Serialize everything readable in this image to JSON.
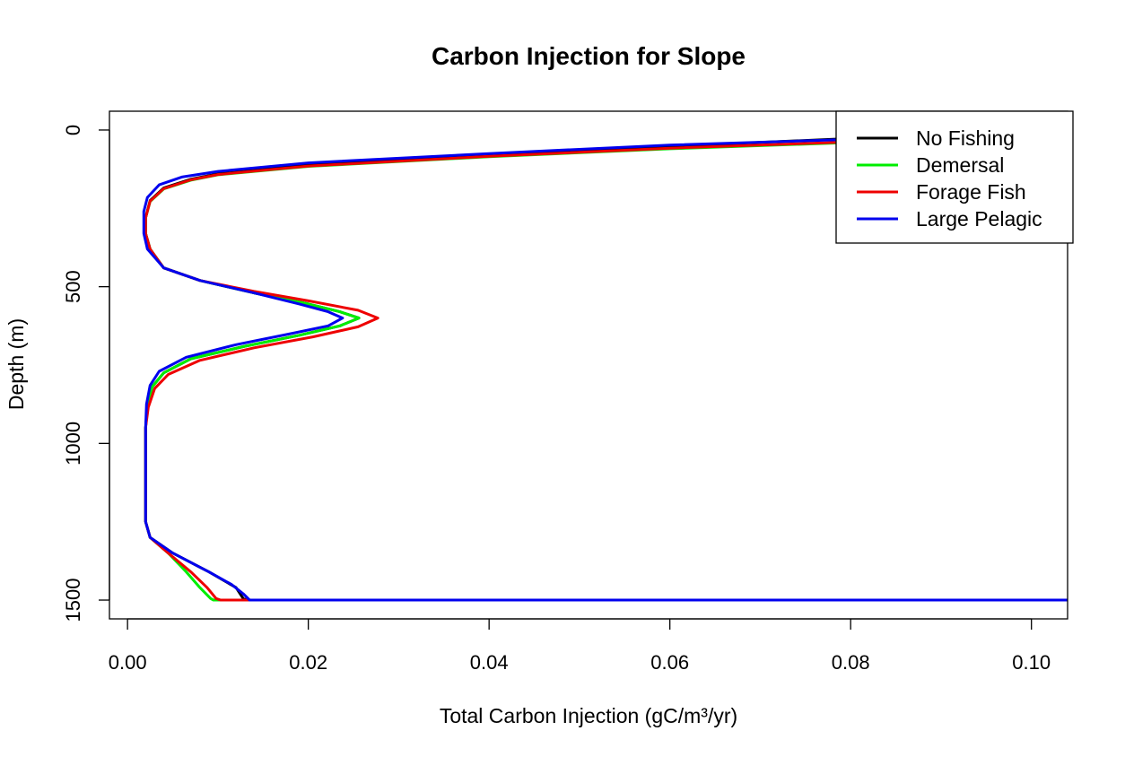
{
  "chart_data": {
    "type": "line",
    "title": "Carbon Injection for Slope",
    "xlabel": "Total Carbon Injection (gC/m³/yr)",
    "ylabel": "Depth (m)",
    "xlim": [
      -0.002,
      0.104
    ],
    "ylim": [
      1560,
      -60
    ],
    "y_reversed": true,
    "x_ticks": [
      0,
      0.02,
      0.04,
      0.06,
      0.08,
      0.1
    ],
    "x_tick_labels": [
      "0.00",
      "0.02",
      "0.04",
      "0.06",
      "0.08",
      "0.10"
    ],
    "y_ticks": [
      0,
      500,
      1000,
      1500
    ],
    "y_tick_labels": [
      "0",
      "500",
      "1000",
      "1500"
    ],
    "grid": false,
    "legend": {
      "position": "top-right"
    },
    "series": [
      {
        "name": "No Fishing",
        "color": "#000000",
        "points": [
          [
            0.104,
            15
          ],
          [
            0.08,
            27
          ],
          [
            0.06,
            52
          ],
          [
            0.04,
            80
          ],
          [
            0.02,
            112
          ],
          [
            0.01,
            140
          ],
          [
            0.007,
            157
          ],
          [
            0.004,
            185
          ],
          [
            0.0025,
            225
          ],
          [
            0.002,
            280
          ],
          [
            0.002,
            330
          ],
          [
            0.0025,
            380
          ],
          [
            0.004,
            440
          ],
          [
            0.008,
            480
          ],
          [
            0.014,
            520
          ],
          [
            0.02,
            555
          ],
          [
            0.0235,
            580
          ],
          [
            0.0256,
            600
          ],
          [
            0.0235,
            625
          ],
          [
            0.019,
            655
          ],
          [
            0.013,
            690
          ],
          [
            0.007,
            730
          ],
          [
            0.004,
            775
          ],
          [
            0.0027,
            820
          ],
          [
            0.0022,
            880
          ],
          [
            0.002,
            950
          ],
          [
            0.002,
            1050
          ],
          [
            0.002,
            1150
          ],
          [
            0.002,
            1250
          ],
          [
            0.0025,
            1300
          ],
          [
            0.005,
            1350
          ],
          [
            0.009,
            1410
          ],
          [
            0.012,
            1460
          ],
          [
            0.0128,
            1495
          ],
          [
            0.0132,
            1500
          ],
          [
            0.104,
            1500
          ]
        ]
      },
      {
        "name": "Demersal",
        "color": "#00ee00",
        "points": [
          [
            0.104,
            18
          ],
          [
            0.08,
            40
          ],
          [
            0.06,
            60
          ],
          [
            0.04,
            85
          ],
          [
            0.02,
            116
          ],
          [
            0.01,
            143
          ],
          [
            0.007,
            160
          ],
          [
            0.004,
            188
          ],
          [
            0.0025,
            228
          ],
          [
            0.002,
            280
          ],
          [
            0.002,
            330
          ],
          [
            0.0025,
            380
          ],
          [
            0.004,
            440
          ],
          [
            0.008,
            480
          ],
          [
            0.014,
            520
          ],
          [
            0.02,
            555
          ],
          [
            0.0235,
            580
          ],
          [
            0.0256,
            600
          ],
          [
            0.0235,
            625
          ],
          [
            0.019,
            655
          ],
          [
            0.013,
            690
          ],
          [
            0.007,
            730
          ],
          [
            0.004,
            775
          ],
          [
            0.0027,
            820
          ],
          [
            0.0022,
            880
          ],
          [
            0.002,
            950
          ],
          [
            0.002,
            1050
          ],
          [
            0.002,
            1150
          ],
          [
            0.002,
            1250
          ],
          [
            0.0025,
            1300
          ],
          [
            0.0045,
            1350
          ],
          [
            0.0065,
            1410
          ],
          [
            0.008,
            1460
          ],
          [
            0.0092,
            1495
          ],
          [
            0.0095,
            1500
          ],
          [
            0.104,
            1500
          ]
        ]
      },
      {
        "name": "Forage Fish",
        "color": "#ee0000",
        "points": [
          [
            0.104,
            18
          ],
          [
            0.08,
            38
          ],
          [
            0.06,
            58
          ],
          [
            0.04,
            84
          ],
          [
            0.02,
            115
          ],
          [
            0.01,
            142
          ],
          [
            0.007,
            159
          ],
          [
            0.004,
            187
          ],
          [
            0.0025,
            227
          ],
          [
            0.002,
            280
          ],
          [
            0.002,
            330
          ],
          [
            0.0025,
            380
          ],
          [
            0.004,
            440
          ],
          [
            0.008,
            480
          ],
          [
            0.014,
            515
          ],
          [
            0.02,
            545
          ],
          [
            0.0255,
            575
          ],
          [
            0.0277,
            600
          ],
          [
            0.0255,
            628
          ],
          [
            0.0205,
            660
          ],
          [
            0.014,
            695
          ],
          [
            0.008,
            735
          ],
          [
            0.0045,
            780
          ],
          [
            0.003,
            825
          ],
          [
            0.0023,
            885
          ],
          [
            0.002,
            950
          ],
          [
            0.002,
            1050
          ],
          [
            0.002,
            1150
          ],
          [
            0.002,
            1250
          ],
          [
            0.0025,
            1300
          ],
          [
            0.0045,
            1350
          ],
          [
            0.007,
            1410
          ],
          [
            0.0088,
            1460
          ],
          [
            0.0098,
            1495
          ],
          [
            0.0103,
            1500
          ],
          [
            0.104,
            1500
          ]
        ]
      },
      {
        "name": "Large Pelagic",
        "color": "#0000ee",
        "points": [
          [
            0.104,
            10
          ],
          [
            0.08,
            30
          ],
          [
            0.06,
            48
          ],
          [
            0.04,
            75
          ],
          [
            0.02,
            105
          ],
          [
            0.01,
            132
          ],
          [
            0.006,
            150
          ],
          [
            0.0035,
            175
          ],
          [
            0.0022,
            215
          ],
          [
            0.0018,
            260
          ],
          [
            0.0018,
            330
          ],
          [
            0.0022,
            380
          ],
          [
            0.004,
            440
          ],
          [
            0.008,
            480
          ],
          [
            0.014,
            520
          ],
          [
            0.019,
            555
          ],
          [
            0.0222,
            580
          ],
          [
            0.0238,
            600
          ],
          [
            0.0222,
            625
          ],
          [
            0.018,
            650
          ],
          [
            0.012,
            685
          ],
          [
            0.0065,
            725
          ],
          [
            0.0035,
            770
          ],
          [
            0.0025,
            815
          ],
          [
            0.0021,
            875
          ],
          [
            0.002,
            950
          ],
          [
            0.002,
            1050
          ],
          [
            0.002,
            1150
          ],
          [
            0.002,
            1250
          ],
          [
            0.0025,
            1300
          ],
          [
            0.005,
            1350
          ],
          [
            0.009,
            1410
          ],
          [
            0.0115,
            1450
          ],
          [
            0.0128,
            1480
          ],
          [
            0.0135,
            1500
          ],
          [
            0.104,
            1500
          ]
        ]
      }
    ]
  }
}
